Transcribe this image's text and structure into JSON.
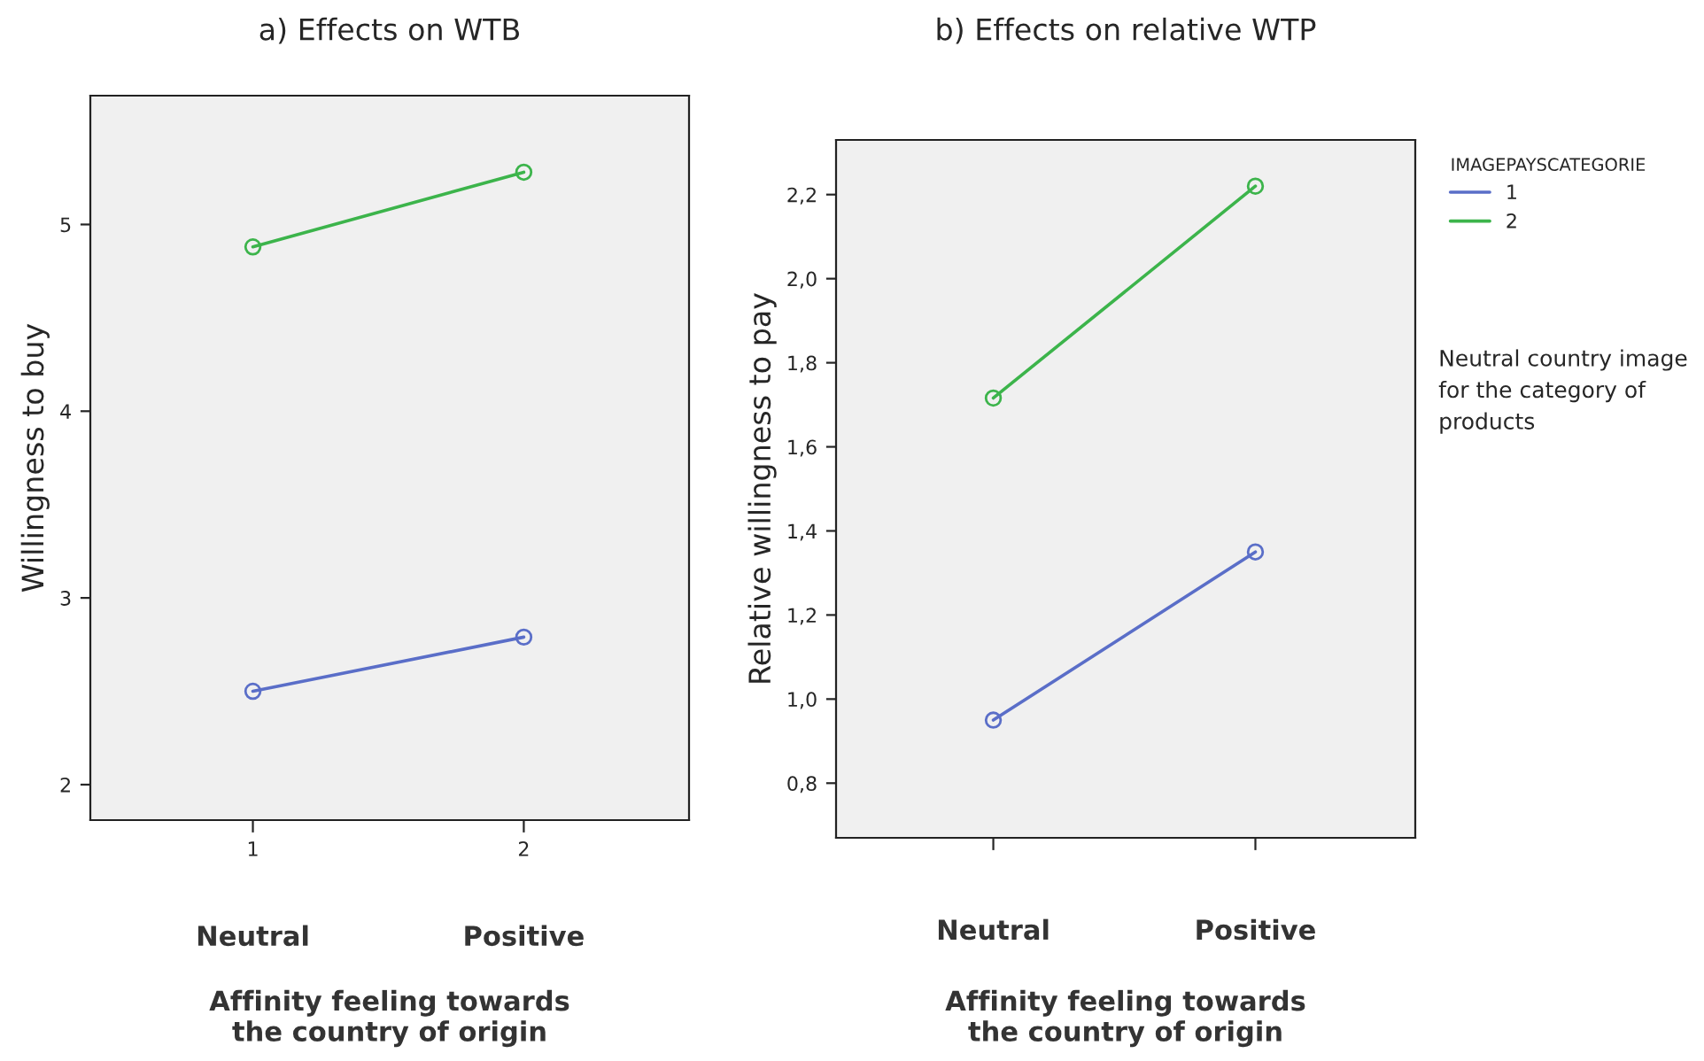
{
  "chart_data": [
    {
      "type": "line",
      "title": "a) Effects on WTB",
      "xlabel": "Affinity feeling towards\nthe country of origin",
      "ylabel": "Willingness to buy",
      "categories": [
        "1",
        "2"
      ],
      "series": [
        {
          "color": "#5a6ec8",
          "values": [
            2.5,
            2.79
          ]
        },
        {
          "color": "#3cb44b",
          "values": [
            4.88,
            5.28
          ]
        }
      ],
      "ylim": [
        1.81,
        5.69
      ],
      "yticks": [
        2,
        3,
        4,
        5
      ],
      "marker": "circle",
      "line_style": "solid",
      "grid": false,
      "annotations": [
        "Neutral",
        "Positive"
      ]
    },
    {
      "type": "line",
      "title": "b) Effects on relative WTP",
      "xlabel": "Affinity feeling towards\nthe country of origin",
      "ylabel": "Relative willingness to pay",
      "legend_title": "IMAGEPAYSCATEGORIE",
      "categories": [
        "Neutral",
        "Positive"
      ],
      "series": [
        {
          "name": "1",
          "color": "#5a6ec8",
          "values": [
            0.95,
            1.35
          ]
        },
        {
          "name": "2",
          "color": "#3cb44b",
          "values": [
            1.716,
            2.22
          ]
        }
      ],
      "ylim": [
        0.67,
        2.33
      ],
      "yticks": [
        {
          "value": 0.8,
          "label": "0,8"
        },
        {
          "value": 1.0,
          "label": "1,0"
        },
        {
          "value": 1.2,
          "label": "1,2"
        },
        {
          "value": 1.4,
          "label": "1,4"
        },
        {
          "value": 1.6,
          "label": "1,6"
        },
        {
          "value": 1.8,
          "label": "1,8"
        },
        {
          "value": 2.0,
          "label": "2,0"
        },
        {
          "value": 2.2,
          "label": "2,2"
        }
      ],
      "marker": "circle",
      "line_style": "solid",
      "grid": false,
      "legend": "right",
      "annotations": [
        "Neutral country image\nfor the category of\nproducts"
      ]
    }
  ]
}
